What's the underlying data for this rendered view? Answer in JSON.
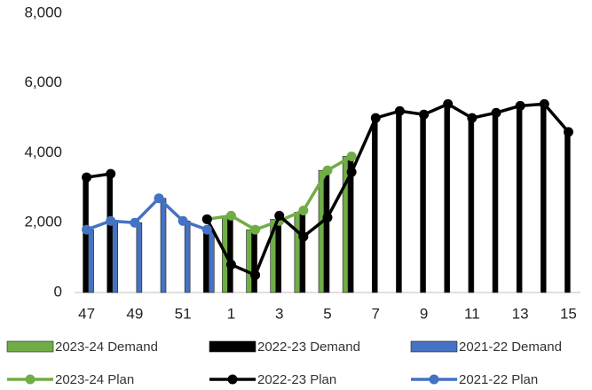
{
  "chart_data": {
    "type": "combo",
    "categories": [
      47,
      null,
      49,
      null,
      51,
      null,
      1,
      null,
      3,
      null,
      5,
      null,
      7,
      null,
      9,
      null,
      11,
      null,
      13,
      null,
      15
    ],
    "ylim": [
      0,
      8000
    ],
    "yticks": [
      0,
      {
        "value": 2000,
        "label": "2,000"
      },
      {
        "value": 4000,
        "label": "4,000"
      },
      {
        "value": 6000,
        "label": "6,000"
      },
      {
        "value": 8000,
        "label": "8,000"
      }
    ],
    "grid": false,
    "legend": "bottom",
    "series": [
      {
        "name": "2023-24 Demand",
        "type": "bar",
        "color": "#70ad47",
        "values": [
          null,
          null,
          null,
          null,
          null,
          null,
          2200,
          1800,
          2100,
          2300,
          3500,
          3900,
          null,
          null,
          null,
          null,
          null,
          null,
          null,
          null,
          null
        ]
      },
      {
        "name": "2022-23 Demand",
        "type": "bar",
        "color": "#000000",
        "values": [
          3300,
          3400,
          null,
          null,
          null,
          1800,
          2100,
          1900,
          2200,
          2300,
          3500,
          3900,
          5000,
          5200,
          5100,
          5400,
          5000,
          5150,
          5350,
          5400,
          4600
        ]
      },
      {
        "name": "2021-22 Demand",
        "type": "bar",
        "color": "#4472c4",
        "values": [
          1800,
          2050,
          2000,
          2700,
          2050,
          1800,
          null,
          null,
          null,
          null,
          null,
          null,
          null,
          null,
          null,
          null,
          null,
          null,
          null,
          null,
          null
        ]
      },
      {
        "name": "2023-24 Plan",
        "type": "line",
        "color": "#70ad47",
        "values": [
          null,
          null,
          null,
          null,
          null,
          2100,
          2200,
          1800,
          2050,
          2350,
          3500,
          3900,
          null,
          null,
          null,
          null,
          null,
          null,
          null,
          null,
          null
        ]
      },
      {
        "name": "2022-23 Plan",
        "type": "line",
        "color": "#000000",
        "values": [
          3300,
          3400,
          null,
          null,
          null,
          2100,
          800,
          500,
          2200,
          1600,
          2150,
          3450,
          5000,
          5200,
          5100,
          5400,
          5000,
          5150,
          5350,
          5400,
          4600
        ]
      },
      {
        "name": "2021-22 Plan",
        "type": "line",
        "color": "#4472c4",
        "values": [
          1800,
          2050,
          2000,
          2700,
          2050,
          1800,
          null,
          null,
          null,
          null,
          null,
          null,
          null,
          null,
          null,
          null,
          null,
          null,
          null,
          null,
          null
        ]
      }
    ]
  }
}
